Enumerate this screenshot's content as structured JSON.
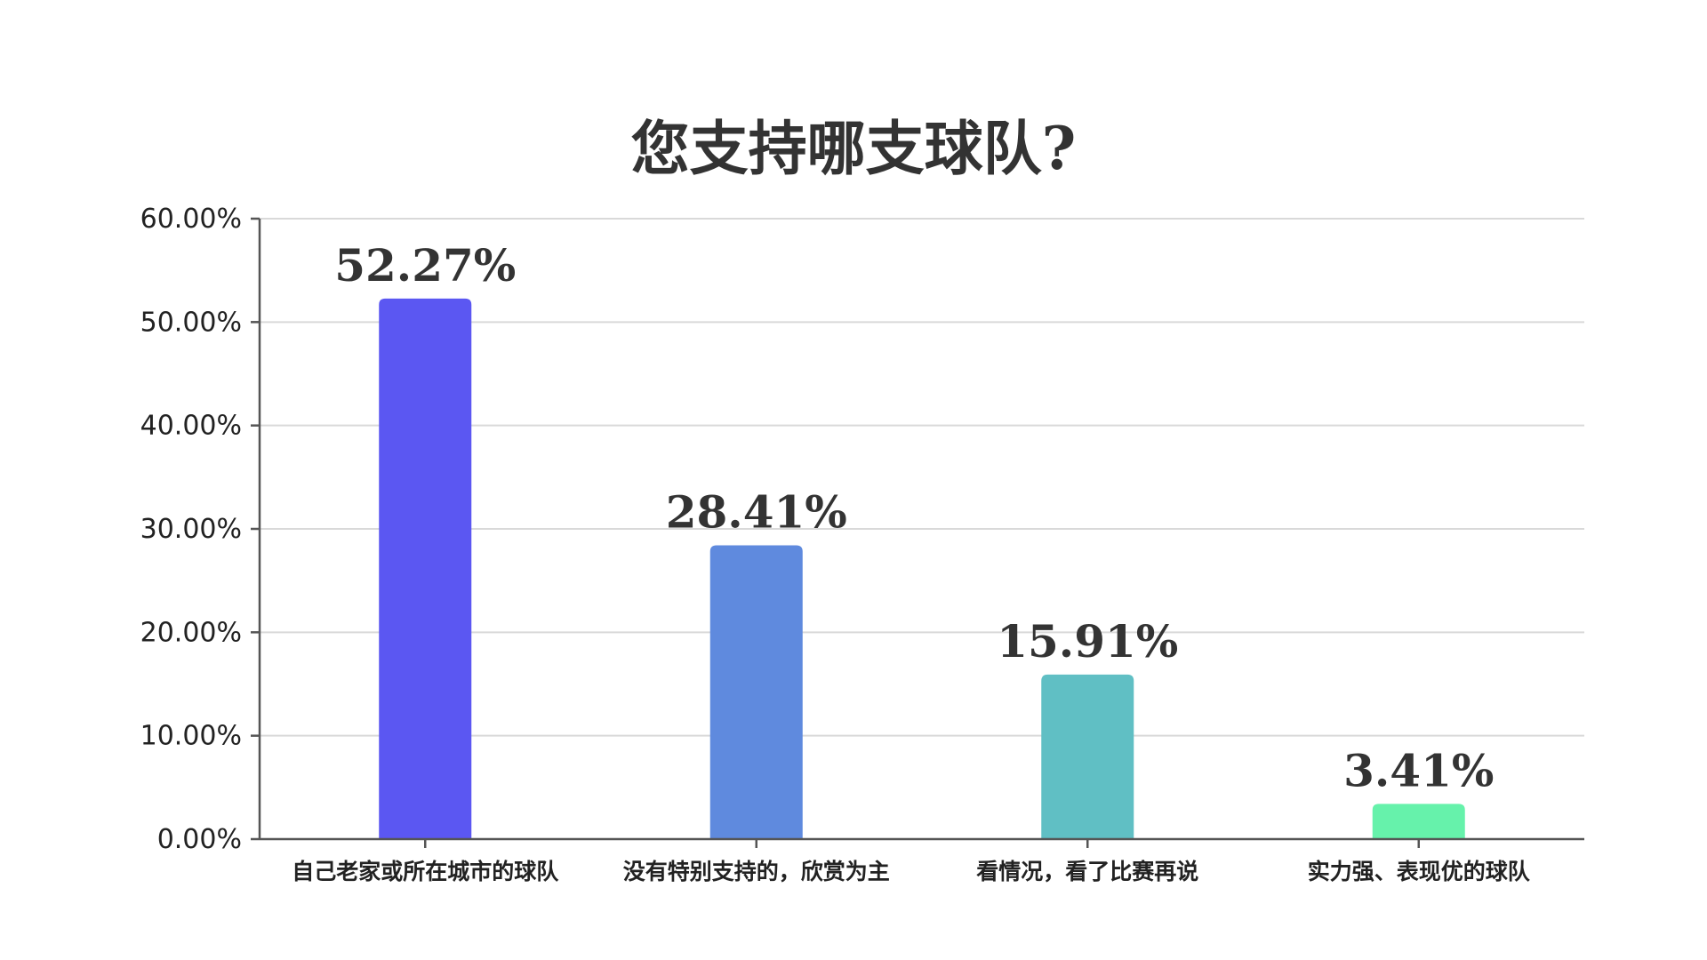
{
  "chart_data": {
    "type": "bar",
    "title": "您支持哪支球队?",
    "xlabel": "",
    "ylabel": "",
    "categories": [
      "自己老家或所在城市的球队",
      "没有特别支持的，欣赏为主",
      "看情况，看了比赛再说",
      "实力强、表现优的球队"
    ],
    "values": [
      52.27,
      28.41,
      15.91,
      3.41
    ],
    "data_labels": [
      "52.27%",
      "28.41%",
      "15.91%",
      "3.41%"
    ],
    "bar_colors": [
      "#5b57f2",
      "#5f8ade",
      "#60bfc4",
      "#66f2ab"
    ],
    "ylim": [
      0,
      60
    ],
    "yticks": [
      0,
      10,
      20,
      30,
      40,
      50,
      60
    ],
    "ytick_labels": [
      "0.00%",
      "10.00%",
      "20.00%",
      "30.00%",
      "40.00%",
      "50.00%",
      "60.00%"
    ],
    "grid": true,
    "legend": "none"
  }
}
